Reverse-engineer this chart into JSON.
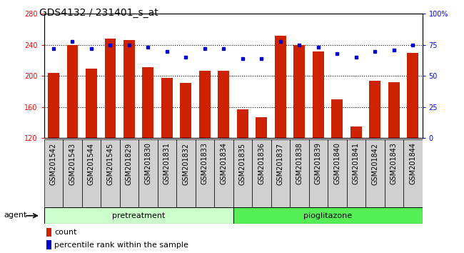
{
  "title": "GDS4132 / 231401_s_at",
  "categories": [
    "GSM201542",
    "GSM201543",
    "GSM201544",
    "GSM201545",
    "GSM201829",
    "GSM201830",
    "GSM201831",
    "GSM201832",
    "GSM201833",
    "GSM201834",
    "GSM201835",
    "GSM201836",
    "GSM201837",
    "GSM201838",
    "GSM201839",
    "GSM201840",
    "GSM201841",
    "GSM201842",
    "GSM201843",
    "GSM201844"
  ],
  "bar_values": [
    204,
    240,
    209,
    248,
    246,
    211,
    197,
    191,
    207,
    207,
    157,
    147,
    252,
    240,
    232,
    170,
    135,
    194,
    192,
    230
  ],
  "dot_values": [
    72,
    78,
    72,
    75,
    75,
    73,
    70,
    65,
    72,
    72,
    64,
    64,
    78,
    75,
    73,
    68,
    65,
    70,
    71,
    75
  ],
  "bar_color": "#cc2200",
  "dot_color": "#0000cc",
  "ylim_left": [
    120,
    280
  ],
  "ylim_right": [
    0,
    100
  ],
  "yticks_left": [
    120,
    160,
    200,
    240,
    280
  ],
  "yticks_right": [
    0,
    25,
    50,
    75,
    100
  ],
  "ytick_labels_right": [
    "0",
    "25",
    "50",
    "75",
    "100%"
  ],
  "pre_count": 10,
  "pio_count": 10,
  "group_label_pretreatment": "pretreatment",
  "group_label_pioglitazone": "pioglitazone",
  "agent_label": "agent",
  "legend_bar_label": "count",
  "legend_dot_label": "percentile rank within the sample",
  "group_color_pre": "#ccffcc",
  "group_color_pio": "#55ee55",
  "xtick_bg": "#d0d0d0",
  "title_fontsize": 10,
  "tick_fontsize": 7,
  "group_fontsize": 8,
  "legend_fontsize": 8
}
